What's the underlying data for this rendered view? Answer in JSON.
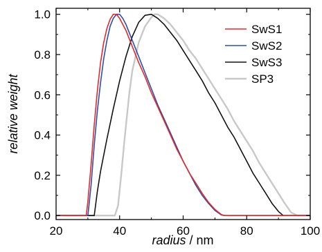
{
  "chart_data": {
    "type": "line",
    "title": "",
    "xlabel": {
      "italic": "radius",
      "unit": " / nm"
    },
    "ylabel": "relative weight",
    "xlim": [
      20,
      100
    ],
    "ylim": [
      -0.02,
      1.03
    ],
    "xticks": [
      20,
      40,
      60,
      80,
      100
    ],
    "xtick_labels": [
      "20",
      "40",
      "60",
      "80",
      "100"
    ],
    "yticks": [
      0.0,
      0.2,
      0.4,
      0.6,
      0.8,
      1.0
    ],
    "ytick_labels": [
      "0.0",
      "0.2",
      "0.4",
      "0.6",
      "0.8",
      "1.0"
    ],
    "grid": false,
    "legend_position": "top-right",
    "series": [
      {
        "name": "SwS1",
        "color": "#e8262a",
        "x": [
          20,
          29.5,
          30,
          31,
          32,
          33,
          34,
          35,
          36,
          37,
          38,
          39,
          40,
          42,
          44,
          46,
          48,
          50,
          52,
          54,
          56,
          58,
          60,
          62,
          64,
          66,
          68,
          70,
          72,
          73,
          100
        ],
        "y": [
          0,
          0,
          0.07,
          0.25,
          0.45,
          0.62,
          0.76,
          0.86,
          0.93,
          0.975,
          1.0,
          1.0,
          0.98,
          0.92,
          0.84,
          0.76,
          0.69,
          0.61,
          0.54,
          0.47,
          0.4,
          0.33,
          0.27,
          0.21,
          0.16,
          0.11,
          0.065,
          0.03,
          0.005,
          0,
          0
        ]
      },
      {
        "name": "SwS2",
        "color": "#2b4fa8",
        "x": [
          20,
          30,
          31,
          32,
          33,
          34,
          35,
          36,
          37,
          38,
          39,
          40,
          41,
          42,
          44,
          46,
          48,
          50,
          52,
          54,
          56,
          58,
          60,
          62,
          64,
          66,
          68,
          70,
          72,
          73,
          100
        ],
        "y": [
          0,
          0,
          0.15,
          0.35,
          0.52,
          0.66,
          0.78,
          0.87,
          0.94,
          0.98,
          1.0,
          1.0,
          0.98,
          0.95,
          0.87,
          0.79,
          0.71,
          0.63,
          0.55,
          0.48,
          0.41,
          0.34,
          0.27,
          0.21,
          0.15,
          0.1,
          0.06,
          0.025,
          0.003,
          0,
          0
        ]
      },
      {
        "name": "SwS3",
        "color": "#111111",
        "x": [
          20,
          32,
          33,
          34,
          36,
          38,
          40,
          42,
          44,
          46,
          48,
          50,
          52,
          54,
          56,
          58,
          60,
          62,
          64,
          66,
          68,
          70,
          72,
          74,
          76,
          78,
          80,
          82,
          84,
          86,
          88,
          90,
          91.5,
          100
        ],
        "y": [
          0,
          0,
          0.12,
          0.22,
          0.38,
          0.53,
          0.67,
          0.79,
          0.89,
          0.96,
          0.995,
          1.0,
          0.98,
          0.95,
          0.91,
          0.87,
          0.82,
          0.77,
          0.72,
          0.67,
          0.61,
          0.56,
          0.5,
          0.44,
          0.39,
          0.33,
          0.27,
          0.21,
          0.16,
          0.11,
          0.06,
          0.02,
          0,
          0
        ]
      },
      {
        "name": "SP3",
        "color": "#c8c8c8",
        "x": [
          20,
          38.5,
          39.5,
          40.5,
          41.5,
          43,
          44,
          46,
          48,
          50,
          51,
          52,
          54,
          56,
          58,
          60,
          62,
          64,
          66,
          68,
          70,
          72,
          74,
          76,
          78,
          80,
          82,
          84,
          86,
          88,
          90,
          92,
          94,
          96,
          98,
          100
        ],
        "y": [
          0,
          0,
          0.05,
          0.2,
          0.37,
          0.6,
          0.72,
          0.86,
          0.94,
          0.985,
          1.0,
          1.0,
          0.98,
          0.95,
          0.91,
          0.87,
          0.82,
          0.78,
          0.73,
          0.68,
          0.63,
          0.58,
          0.53,
          0.47,
          0.42,
          0.37,
          0.32,
          0.26,
          0.21,
          0.16,
          0.11,
          0.06,
          0.015,
          0,
          0,
          0
        ]
      }
    ]
  }
}
